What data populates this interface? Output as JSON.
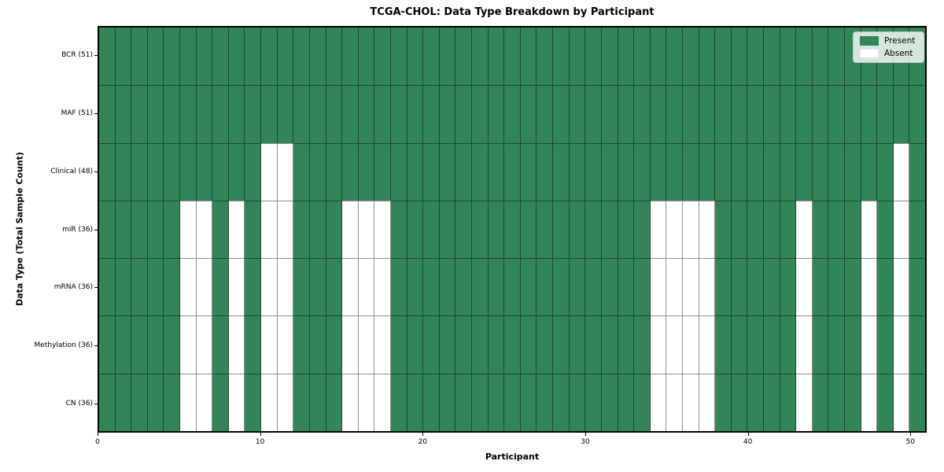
{
  "title": "TCGA-CHOL: Data Type Breakdown by Participant",
  "legend": {
    "present_label": "Present",
    "absent_label": "Absent"
  },
  "colors": {
    "present": "#318557",
    "absent": "#ffffff",
    "present_border": "#20452f",
    "absent_border": "#8f8f8f",
    "frame": "#000000"
  },
  "chart_data": {
    "type": "heatmap",
    "title": "TCGA-CHOL: Data Type Breakdown by Participant",
    "xlabel": "Participant",
    "ylabel": "Data Type (Total Sample Count)",
    "n_participants": 51,
    "x_range": [
      0,
      51
    ],
    "x_ticks": [
      0,
      10,
      20,
      30,
      40,
      50
    ],
    "legend_entries": [
      "Present",
      "Absent"
    ],
    "legend_position": "upper right",
    "grid": true,
    "rows": [
      {
        "label": "BCR (51)",
        "data_type": "BCR",
        "present_count": 51,
        "absent_participants": []
      },
      {
        "label": "MAF (51)",
        "data_type": "MAF",
        "present_count": 51,
        "absent_participants": []
      },
      {
        "label": "Clinical (48)",
        "data_type": "Clinical",
        "present_count": 48,
        "absent_participants": [
          10,
          11,
          49
        ]
      },
      {
        "label": "miR (36)",
        "data_type": "miR",
        "present_count": 36,
        "absent_participants": [
          5,
          6,
          8,
          10,
          11,
          15,
          16,
          17,
          34,
          35,
          36,
          37,
          43,
          47,
          49
        ]
      },
      {
        "label": "mRNA (36)",
        "data_type": "mRNA",
        "present_count": 36,
        "absent_participants": [
          5,
          6,
          8,
          10,
          11,
          15,
          16,
          17,
          34,
          35,
          36,
          37,
          43,
          47,
          49
        ]
      },
      {
        "label": "Methylation (36)",
        "data_type": "Methylation",
        "present_count": 36,
        "absent_participants": [
          5,
          6,
          8,
          10,
          11,
          15,
          16,
          17,
          34,
          35,
          36,
          37,
          43,
          47,
          49
        ]
      },
      {
        "label": "CN (36)",
        "data_type": "CN",
        "present_count": 36,
        "absent_participants": [
          5,
          6,
          8,
          10,
          11,
          15,
          16,
          17,
          34,
          35,
          36,
          37,
          43,
          47,
          49
        ]
      }
    ]
  }
}
